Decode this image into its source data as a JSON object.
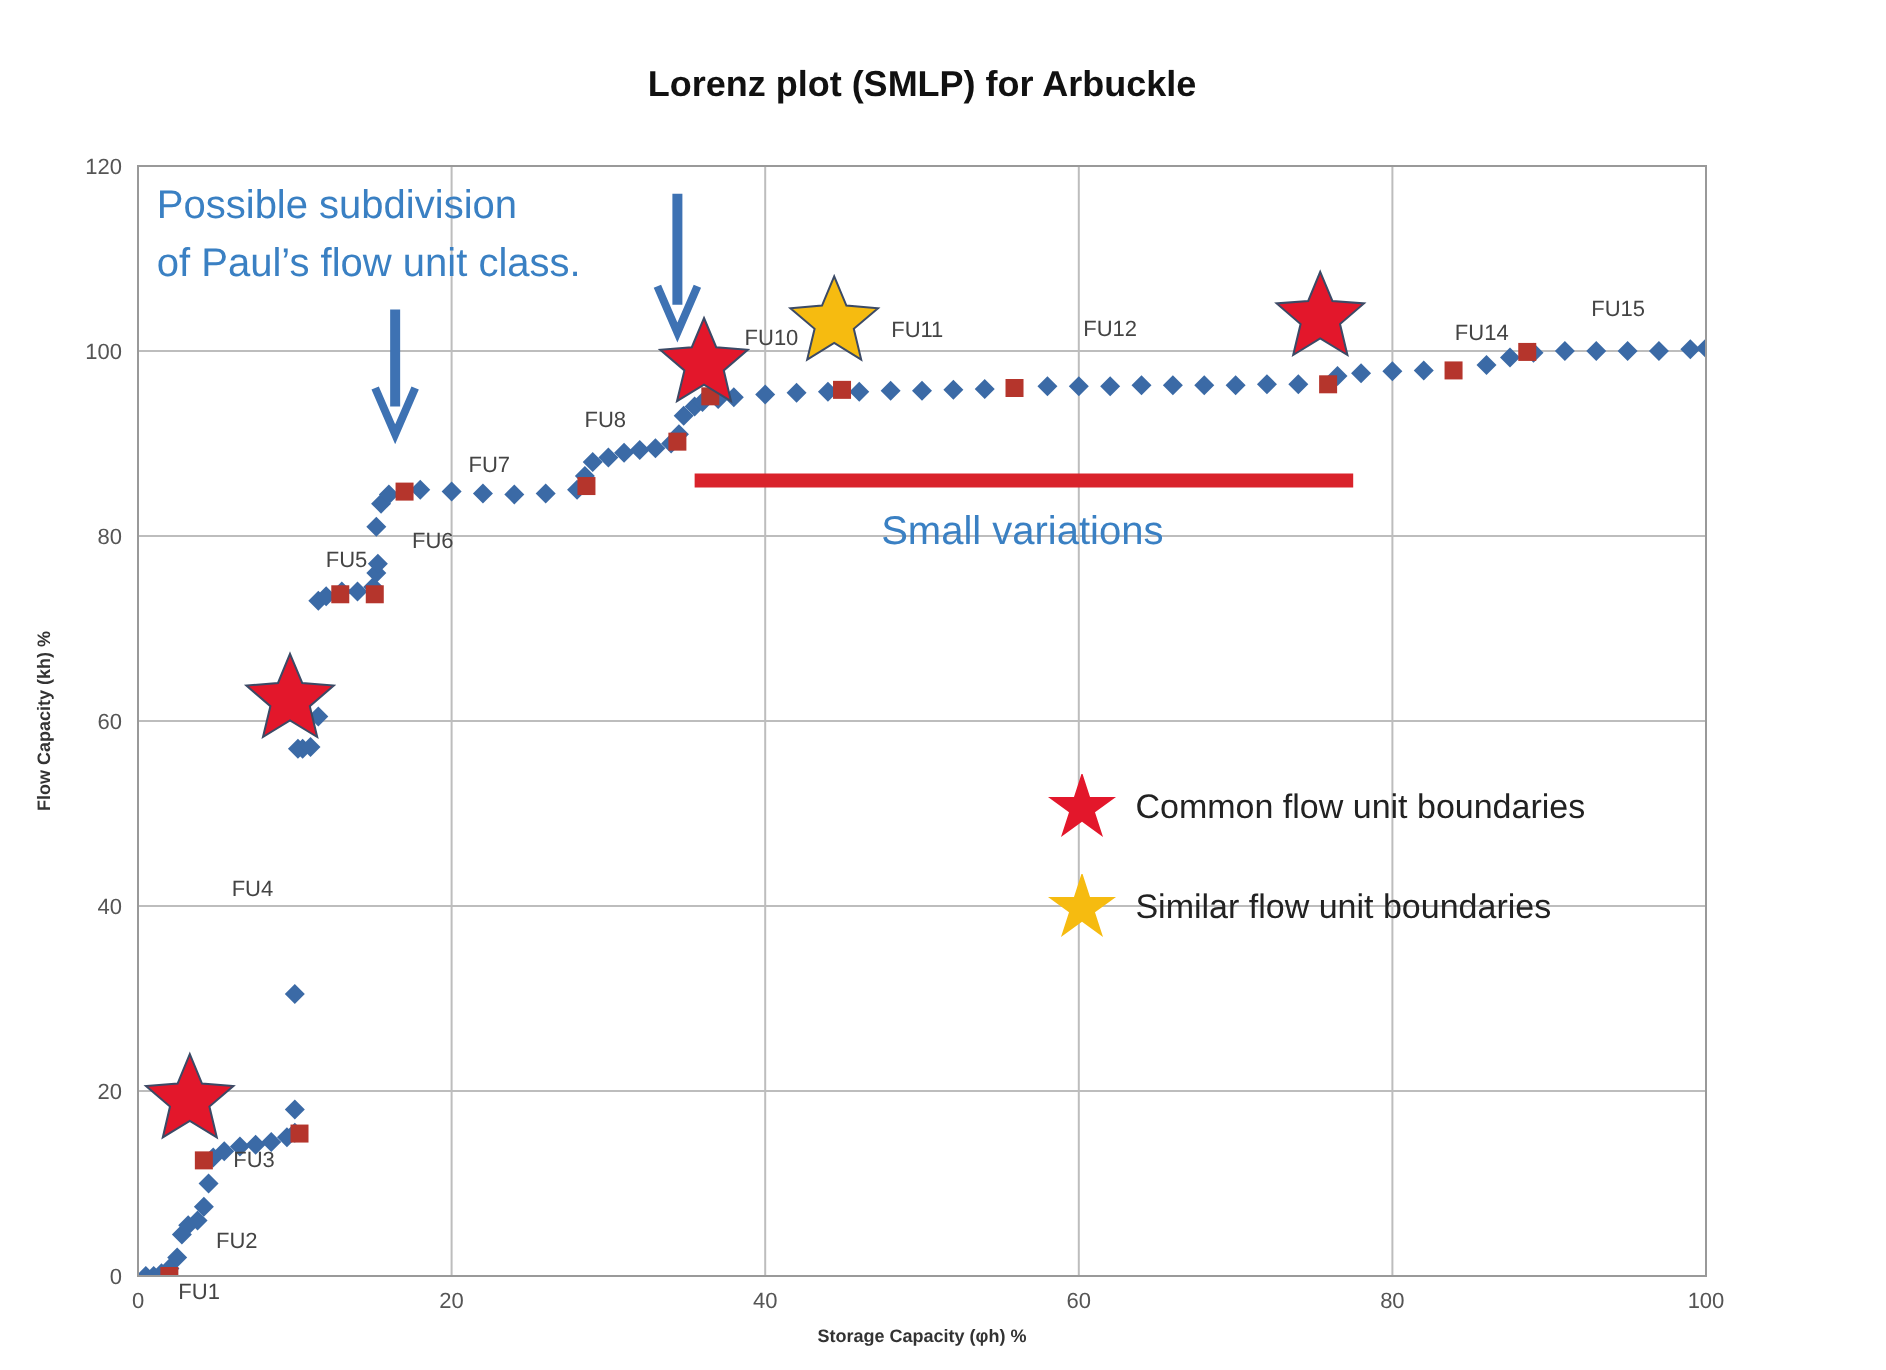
{
  "chart_data": {
    "type": "scatter",
    "title": "Lorenz plot (SMLP) for Arbuckle",
    "xlabel": "Storage Capacity (φh) %",
    "ylabel": "Flow Capacity (kh) %",
    "xlim": [
      0,
      100
    ],
    "ylim": [
      0,
      120
    ],
    "xticks": [
      0,
      20,
      40,
      60,
      80,
      100
    ],
    "yticks": [
      0,
      20,
      40,
      60,
      80,
      100,
      120
    ],
    "grid": true,
    "legend": "right",
    "series": [
      {
        "marker": "diamond",
        "color": "#3b6aa6",
        "x": [
          0.5,
          1,
          1.5,
          2,
          2.5,
          2.8,
          3.2,
          3.8,
          4.2,
          4.5,
          4.8,
          5.5,
          6.5,
          7.5,
          8.5,
          9.5,
          10,
          10,
          10,
          10.2,
          10.5,
          11,
          11.5,
          11.5,
          12,
          13,
          14,
          15,
          15.2,
          15.3,
          15.2,
          15.5,
          16,
          17,
          18,
          20,
          22,
          24,
          26,
          28,
          28.5,
          29,
          30,
          31,
          32,
          33,
          34,
          34.5,
          34.8,
          35.5,
          36,
          37,
          38,
          40,
          42,
          44,
          46,
          48,
          50,
          52,
          54,
          56,
          58,
          60,
          62,
          64,
          66,
          68,
          70,
          72,
          74,
          76.5,
          78,
          80,
          82,
          84,
          86,
          87.5,
          89,
          91,
          93,
          95,
          97,
          99,
          100
        ],
        "values": [
          0,
          0,
          0.3,
          0.8,
          2,
          4.5,
          5.5,
          6,
          7.5,
          10,
          12.8,
          13.5,
          14,
          14.2,
          14.5,
          15,
          15.5,
          18,
          30.5,
          57,
          57,
          57.2,
          60.5,
          73,
          73.5,
          74,
          74,
          74.5,
          76,
          77,
          81,
          83.5,
          84.5,
          null,
          85,
          84.8,
          84.6,
          84.5,
          84.6,
          85,
          86.5,
          88,
          88.5,
          89,
          89.3,
          89.5,
          90,
          91,
          93,
          94,
          94.5,
          94.8,
          95,
          95.3,
          95.5,
          95.6,
          95.6,
          95.7,
          95.7,
          95.8,
          95.9,
          null,
          96.2,
          96.2,
          96.2,
          96.3,
          96.3,
          96.3,
          96.3,
          96.4,
          96.4,
          97.3,
          97.6,
          97.8,
          97.9,
          null,
          98.5,
          99.3,
          99.8,
          100,
          100,
          100,
          100,
          100.2,
          100.3
        ]
      },
      {
        "marker": "square",
        "color": "#b5352c",
        "x": [
          2,
          4.2,
          10.3,
          12.9,
          15.1,
          17,
          28.6,
          34.4,
          36.5,
          44.9,
          55.9,
          75.9,
          83.9,
          88.6
        ],
        "values": [
          0,
          12.5,
          15.4,
          73.7,
          73.7,
          84.8,
          85.4,
          90.2,
          95.1,
          95.8,
          96,
          96.4,
          97.9,
          99.9
        ]
      },
      {
        "marker": "star",
        "name": "Common flow unit boundaries",
        "color": "#e3172b",
        "x": [
          3.3,
          9.7,
          36.1,
          75.4
        ],
        "values": [
          19,
          62.3,
          98.6,
          103.6
        ]
      },
      {
        "marker": "star",
        "name": "Similar flow unit boundaries",
        "color": "#f6bb10",
        "x": [
          44.4
        ],
        "values": [
          103.1
        ]
      },
      {
        "type": "line",
        "color": "#d9232b",
        "x": [
          35.5,
          77.5
        ],
        "values": [
          86,
          86
        ]
      }
    ],
    "annotations": [
      "Possible subdivision\nof Paul’s flow unit class.",
      "Small variations",
      "FU1",
      "FU2",
      "FU3",
      "FU4",
      "FU5",
      "FU6",
      "FU7",
      "FU8",
      "FU10",
      "FU11",
      "FU12",
      "FU14",
      "FU15"
    ]
  }
}
